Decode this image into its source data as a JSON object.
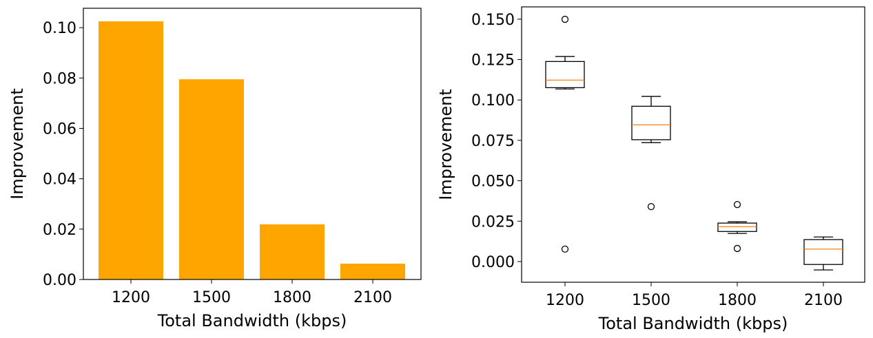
{
  "chart_data": [
    {
      "type": "bar",
      "categories": [
        "1200",
        "1500",
        "1800",
        "2100"
      ],
      "values": [
        0.1025,
        0.0795,
        0.0219,
        0.0063
      ],
      "xlabel": "Total Bandwidth (kbps)",
      "ylabel": "Improvement",
      "ylim": [
        0,
        0.1077
      ],
      "yticks": [
        "0.00",
        "0.02",
        "0.04",
        "0.06",
        "0.08",
        "0.10"
      ],
      "bar_color": "#FFA500",
      "grid": false
    },
    {
      "type": "box",
      "categories": [
        "1200",
        "1500",
        "1800",
        "2100"
      ],
      "boxes": [
        {
          "whisker_low": 0.1068,
          "q1": 0.1076,
          "median": 0.1123,
          "q3": 0.1238,
          "whisker_high": 0.1269,
          "outliers": [
            0.1499,
            0.0077
          ]
        },
        {
          "whisker_low": 0.0736,
          "q1": 0.0754,
          "median": 0.0846,
          "q3": 0.0961,
          "whisker_high": 0.1022,
          "outliers": [
            0.034
          ]
        },
        {
          "whisker_low": 0.0174,
          "q1": 0.0186,
          "median": 0.0216,
          "q3": 0.0238,
          "whisker_high": 0.0246,
          "outliers": [
            0.0353,
            0.0081
          ]
        },
        {
          "whisker_low": -0.0052,
          "q1": -0.0018,
          "median": 0.0077,
          "q3": 0.0136,
          "whisker_high": 0.0152,
          "outliers": []
        }
      ],
      "xlabel": "Total Bandwidth (kbps)",
      "ylabel": "Improvement",
      "ylim": [
        -0.0128,
        0.1576
      ],
      "yticks": [
        "0.000",
        "0.025",
        "0.050",
        "0.075",
        "0.100",
        "0.125",
        "0.150"
      ],
      "median_color": "#FF7F0E",
      "grid": false
    }
  ]
}
